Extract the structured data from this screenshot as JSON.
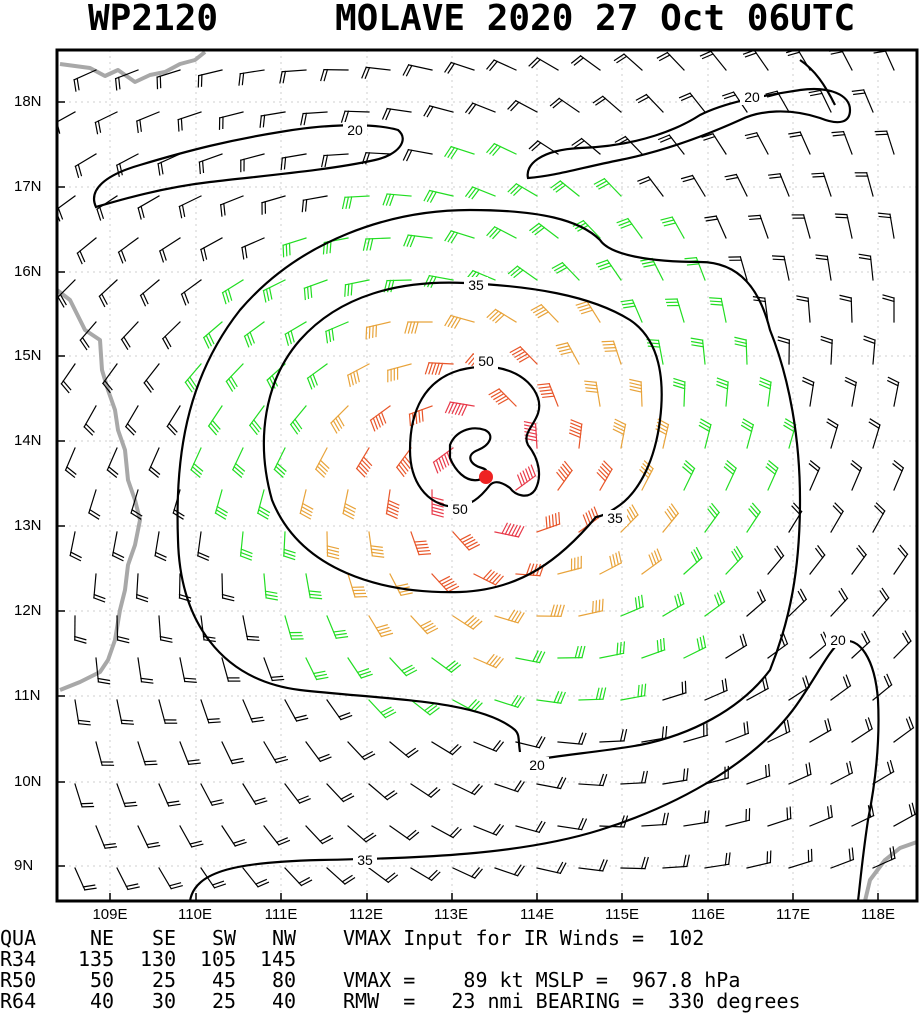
{
  "header": {
    "storm_id": "WP2120",
    "storm_title": "MOLAVE 2020 27 Oct 06UTC"
  },
  "map": {
    "lat_labels": [
      "18N",
      "17N",
      "16N",
      "15N",
      "14N",
      "13N",
      "12N",
      "11N",
      "10N",
      "9N"
    ],
    "lon_labels": [
      "109E",
      "110E",
      "111E",
      "112E",
      "113E",
      "114E",
      "115E",
      "116E",
      "117E",
      "118E"
    ],
    "contour_labels": [
      "20",
      "20",
      "20",
      "20",
      "35",
      "35",
      "50",
      "50"
    ],
    "colors": {
      "wind_lt35": "#000000",
      "wind_35_50": "#22dd22",
      "wind_50_64": "#e8a33a",
      "wind_64_plus": "#e8562a",
      "wind_core": "#e83a4a",
      "center_dot": "#ee2222",
      "coastline": "#a8a8a8",
      "contour": "#000000"
    }
  },
  "info": {
    "quad_header": [
      "QUA",
      "NE",
      "SE",
      "SW",
      "NW"
    ],
    "r34": [
      "R34",
      "135",
      "130",
      "105",
      "145"
    ],
    "r50": [
      "R50",
      "50",
      "25",
      "45",
      "80"
    ],
    "r64": [
      "R64",
      "40",
      "30",
      "25",
      "40"
    ],
    "line1": "VMAX Input for IR Winds =  102",
    "line2": "VMAX =    89 kt MSLP =  967.8 hPa",
    "line3": "RMW  =   23 nmi BEARING =  330 degrees"
  }
}
